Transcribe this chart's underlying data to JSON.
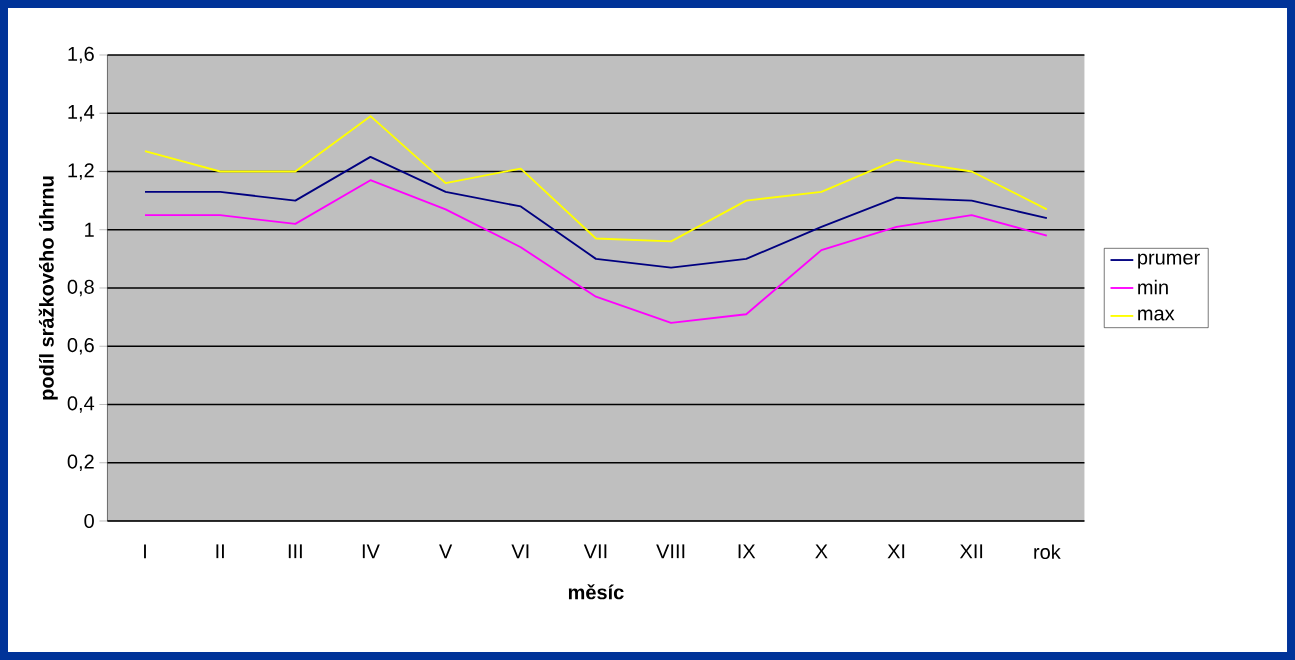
{
  "chart_data": {
    "type": "line",
    "xlabel": "měsíc",
    "ylabel": "podíl srážkového úhrnu",
    "categories": [
      "I",
      "II",
      "III",
      "IV",
      "V",
      "VI",
      "VII",
      "VIII",
      "IX",
      "X",
      "XI",
      "XII",
      "rok"
    ],
    "series": [
      {
        "name": "prumer",
        "color": "#000080",
        "values": [
          1.13,
          1.13,
          1.1,
          1.25,
          1.13,
          1.08,
          0.9,
          0.87,
          0.9,
          1.01,
          1.11,
          1.1,
          1.04
        ]
      },
      {
        "name": "min",
        "color": "#ff00ff",
        "values": [
          1.05,
          1.05,
          1.02,
          1.17,
          1.07,
          0.94,
          0.77,
          0.68,
          0.71,
          0.93,
          1.01,
          1.05,
          0.98
        ]
      },
      {
        "name": "max",
        "color": "#ffff00",
        "values": [
          1.27,
          1.2,
          1.2,
          1.39,
          1.16,
          1.21,
          0.97,
          0.96,
          1.1,
          1.13,
          1.24,
          1.2,
          1.07
        ]
      }
    ],
    "ylim": [
      0,
      1.6
    ],
    "yticks": [
      0,
      {
        "value": 0.2,
        "label": "0,2"
      },
      {
        "value": 0.4,
        "label": "0,4"
      },
      {
        "value": 0.6,
        "label": "0,6"
      },
      {
        "value": 0.8,
        "label": "0,8"
      },
      1,
      {
        "value": 1.2,
        "label": "1,2"
      },
      {
        "value": 1.4,
        "label": "1,4"
      },
      {
        "value": 1.6,
        "label": "1,6"
      }
    ],
    "grid": "y",
    "legend": "right",
    "marker": "none",
    "line_style": "solid"
  }
}
